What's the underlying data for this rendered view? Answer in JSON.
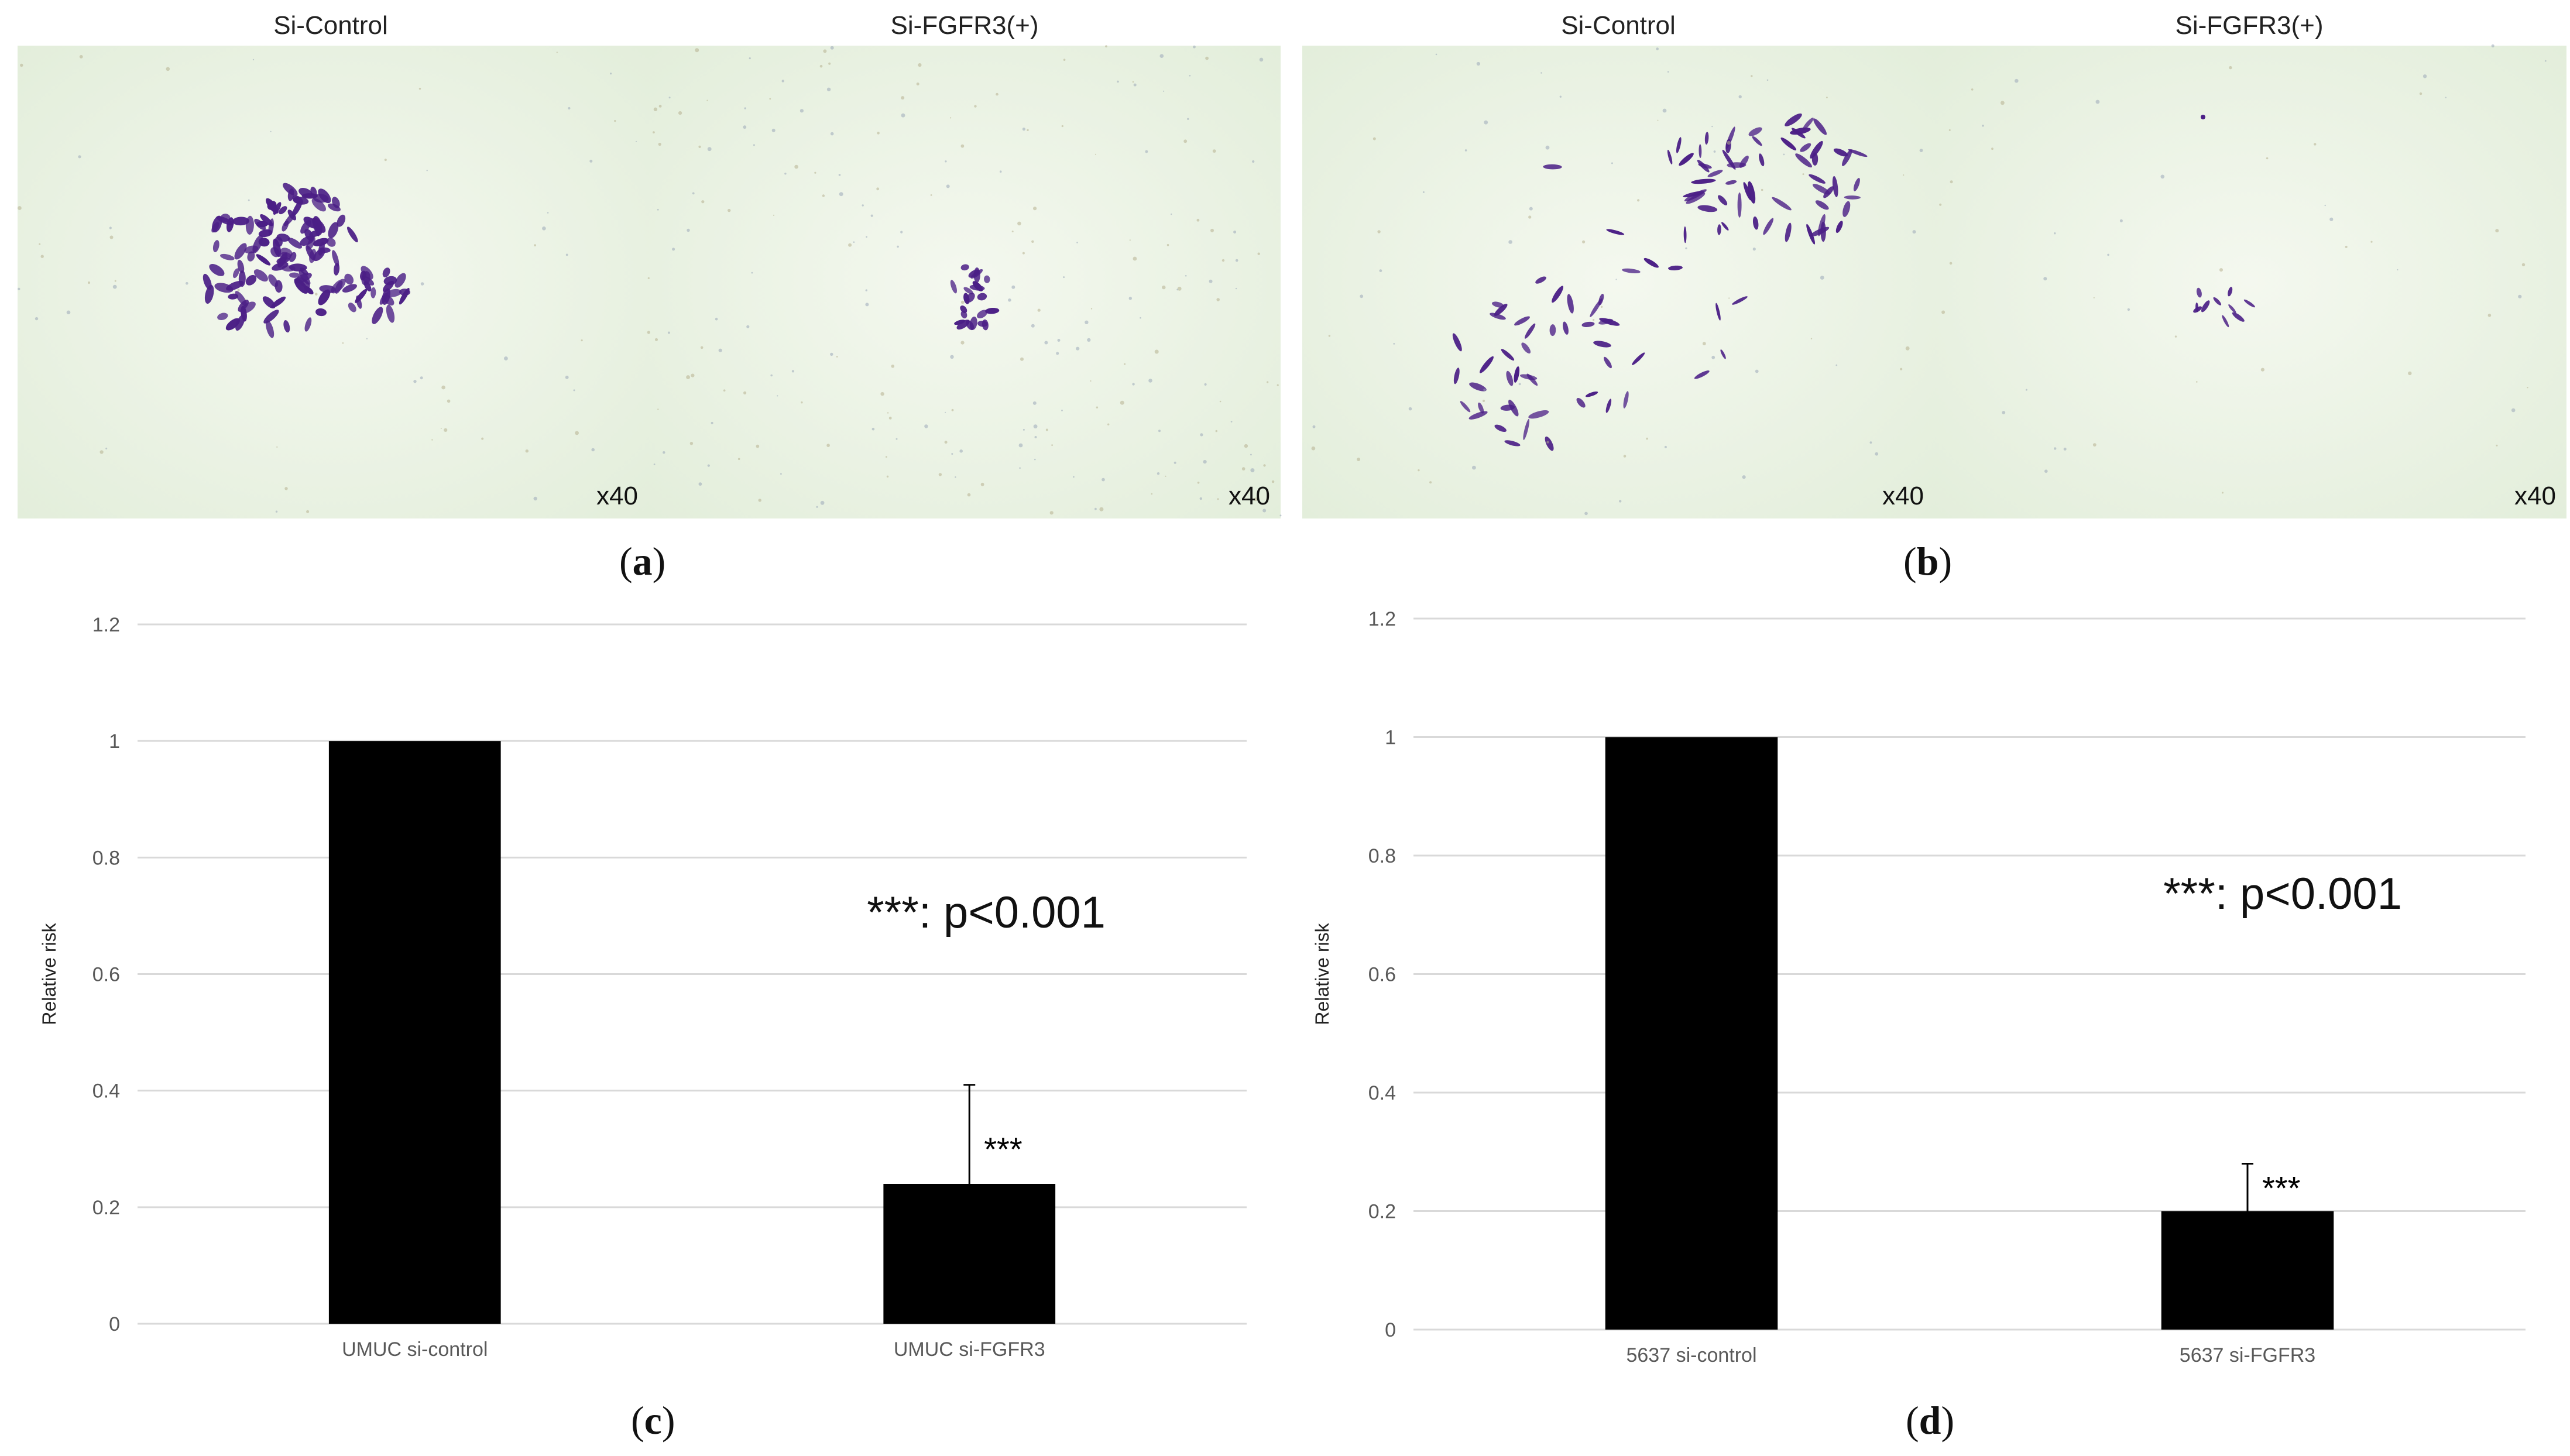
{
  "micrographs": [
    {
      "panel": "a",
      "images": [
        {
          "header": "Si-Control",
          "magnification": "x40"
        },
        {
          "header": "Si-FGFR3(+)",
          "magnification": "x40"
        }
      ]
    },
    {
      "panel": "b",
      "images": [
        {
          "header": "Si-Control",
          "magnification": "x40"
        },
        {
          "header": "Si-FGFR3(+)",
          "magnification": "x40"
        }
      ]
    }
  ],
  "panel_labels": {
    "a": "a",
    "b": "b",
    "c": "c",
    "d": "d"
  },
  "colors": {
    "bar": "#000000",
    "grid": "#d9d9d9",
    "stain": "#4b1f86",
    "micro_bg": "#eef5e8"
  },
  "chart_data": [
    {
      "panel": "c",
      "type": "bar",
      "categories": [
        "UMUC si-control",
        "UMUC si-FGFR3"
      ],
      "values": [
        1.0,
        0.24
      ],
      "error_upper": [
        0.0,
        0.17
      ],
      "significance": [
        "",
        "***"
      ],
      "annotation": "***: p<0.001",
      "ylabel": "Relative risk",
      "ylim": [
        0,
        1.2
      ],
      "yticks": [
        "0",
        "0.2",
        "0.4",
        "0.6",
        "0.8",
        "1",
        "1.2"
      ],
      "grid": true
    },
    {
      "panel": "d",
      "type": "bar",
      "categories": [
        "5637 si-control",
        "5637 si-FGFR3"
      ],
      "values": [
        1.0,
        0.2
      ],
      "error_upper": [
        0.0,
        0.08
      ],
      "significance": [
        "",
        "***"
      ],
      "annotation": "***: p<0.001",
      "ylabel": "Relative risk",
      "ylim": [
        0,
        1.2
      ],
      "yticks": [
        "0",
        "0.2",
        "0.4",
        "0.6",
        "0.8",
        "1",
        "1.2"
      ],
      "grid": true
    }
  ]
}
